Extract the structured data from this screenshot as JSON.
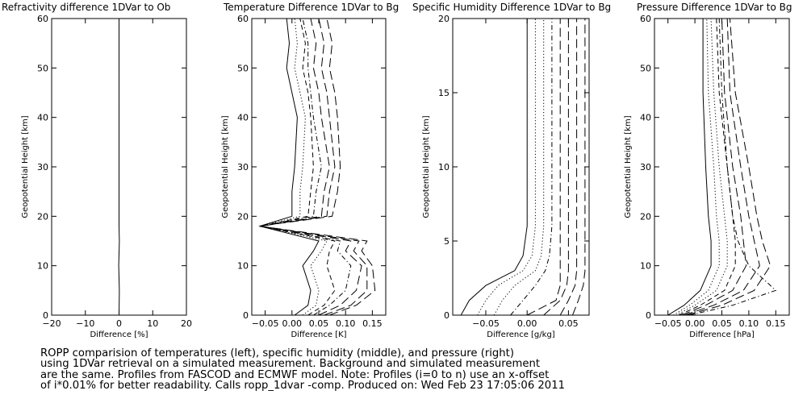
{
  "caption": {
    "lines": [
      "ROPP comparision of temperatures (left), specific humidity (middle), and pressure (right)",
      "using 1DVar retrieval on a simulated measurement. Background and simulated measurement",
      "are the same. Profiles from FASCOD and ECMWF model. Note: Profiles (i=0 to n) use an x-offset",
      "of i*0.01% for better readability. Calls ropp_1dvar -comp. Produced on: Wed Feb 23 17:05:06 2011"
    ]
  },
  "chart_data": [
    {
      "type": "line",
      "title": "Refractivity difference 1DVar to Ob",
      "xlabel": "Difference [%]",
      "ylabel": "Geopotential Height [km]",
      "xlim": [
        -20,
        20
      ],
      "ylim": [
        0,
        60
      ],
      "xticks": [
        -20,
        -10,
        0,
        10,
        20
      ],
      "xtick_labels": [
        "−20",
        "−10",
        "0",
        "10",
        "20"
      ],
      "yticks": [
        0,
        10,
        20,
        30,
        40,
        50,
        60
      ],
      "ytick_labels": [
        "0",
        "10",
        "20",
        "30",
        "40",
        "50",
        "60"
      ],
      "grid": false,
      "series": [
        {
          "dash": "solid",
          "x": [
            0,
            0.1,
            -0.1,
            0.1,
            0,
            0
          ],
          "y": [
            0,
            5,
            10,
            15,
            18,
            60
          ]
        }
      ]
    },
    {
      "type": "line",
      "title": "Temperature Difference 1DVar to Bg",
      "xlabel": "Difference [K]",
      "ylabel": "Geopotential Height [km]",
      "xlim": [
        -0.075,
        0.175
      ],
      "ylim": [
        0,
        60
      ],
      "xticks": [
        -0.05,
        0,
        0.05,
        0.1,
        0.15
      ],
      "xtick_labels": [
        "−0.05",
        "0.00",
        "0.05",
        "0.10",
        "0.15"
      ],
      "yticks": [
        0,
        10,
        20,
        30,
        40,
        50,
        60
      ],
      "ytick_labels": [
        "0",
        "10",
        "20",
        "30",
        "40",
        "50",
        "60"
      ],
      "grid": false,
      "series": [
        {
          "dash": "solid",
          "x": [
            0.005,
            0.03,
            0.035,
            0.02,
            0.04,
            0.05,
            -0.06,
            0.0,
            0.0,
            0.005,
            0.01,
            0.0,
            -0.01,
            -0.005,
            -0.01
          ],
          "y": [
            0,
            2,
            5,
            10,
            13,
            15,
            18,
            20,
            25,
            30,
            40,
            45,
            50,
            55,
            60
          ]
        },
        {
          "dash": "dot",
          "x": [
            0.02,
            0.045,
            0.05,
            0.035,
            0.055,
            0.065,
            -0.06,
            0.015,
            0.015,
            0.02,
            0.025,
            0.015,
            0.005,
            0.01,
            0.005
          ],
          "y": [
            0,
            2,
            5,
            10,
            13,
            15,
            18,
            20,
            25,
            30,
            40,
            45,
            50,
            55,
            60
          ]
        },
        {
          "dash": "dash",
          "x": [
            0.03,
            0.06,
            0.08,
            0.065,
            0.07,
            0.08,
            -0.06,
            0.03,
            0.035,
            0.04,
            0.035,
            0.03,
            0.02,
            0.025,
            0.015
          ],
          "y": [
            0,
            2,
            5,
            10,
            13,
            15,
            18,
            20,
            25,
            30,
            40,
            45,
            50,
            55,
            60
          ]
        },
        {
          "dash": "dashdot",
          "x": [
            0.04,
            0.07,
            0.1,
            0.11,
            0.085,
            0.09,
            -0.06,
            0.04,
            0.045,
            0.055,
            0.04,
            0.035,
            0.03,
            0.03,
            0.02
          ],
          "y": [
            0,
            2,
            5,
            10,
            13,
            15,
            18,
            20,
            25,
            30,
            40,
            45,
            50,
            55,
            60
          ]
        },
        {
          "dash": "longdash",
          "x": [
            0.05,
            0.09,
            0.12,
            0.13,
            0.1,
            0.11,
            -0.06,
            0.055,
            0.06,
            0.07,
            0.055,
            0.05,
            0.04,
            0.045,
            0.035
          ],
          "y": [
            0,
            2,
            5,
            10,
            13,
            15,
            18,
            20,
            25,
            30,
            40,
            45,
            50,
            55,
            60
          ]
        },
        {
          "dash": "longdash",
          "x": [
            0.06,
            0.11,
            0.14,
            0.14,
            0.115,
            0.125,
            -0.06,
            0.065,
            0.07,
            0.08,
            0.07,
            0.065,
            0.055,
            0.06,
            0.05
          ],
          "y": [
            0,
            2,
            5,
            10,
            13,
            15,
            18,
            20,
            25,
            30,
            40,
            45,
            50,
            55,
            60
          ]
        },
        {
          "dash": "longdash",
          "x": [
            0.07,
            0.12,
            0.155,
            0.15,
            0.13,
            0.14,
            -0.06,
            0.075,
            0.085,
            0.09,
            0.085,
            0.08,
            0.07,
            0.075,
            0.065
          ],
          "y": [
            0,
            2,
            5,
            10,
            13,
            15,
            18,
            20,
            25,
            30,
            40,
            45,
            50,
            55,
            60
          ]
        }
      ]
    },
    {
      "type": "line",
      "title": "Specific Humidity Difference 1DVar to Bg",
      "xlabel": "Difference [g/kg]",
      "ylabel": "Geopotential Height [km]",
      "xlim": [
        -0.09,
        0.075
      ],
      "ylim": [
        0,
        20
      ],
      "xticks": [
        -0.05,
        0,
        0.05
      ],
      "xtick_labels": [
        "−0.05",
        "0.00",
        "0.05"
      ],
      "yticks": [
        0,
        5,
        10,
        15,
        20
      ],
      "ytick_labels": [
        "0",
        "5",
        "10",
        "15",
        "20"
      ],
      "grid": false,
      "series": [
        {
          "dash": "solid",
          "x": [
            -0.08,
            -0.07,
            -0.05,
            -0.015,
            -0.005,
            0.0,
            0.0
          ],
          "y": [
            0,
            1,
            2,
            3,
            4,
            6,
            20
          ]
        },
        {
          "dash": "dot",
          "x": [
            -0.06,
            -0.05,
            -0.035,
            -0.005,
            0.006,
            0.01,
            0.01
          ],
          "y": [
            0,
            1,
            2,
            3,
            4,
            6,
            20
          ]
        },
        {
          "dash": "dot",
          "x": [
            -0.04,
            -0.03,
            -0.015,
            0.01,
            0.017,
            0.02,
            0.02
          ],
          "y": [
            0,
            1,
            2,
            3,
            4,
            6,
            20
          ]
        },
        {
          "dash": "dashdot",
          "x": [
            -0.02,
            -0.005,
            0.01,
            0.022,
            0.027,
            0.03,
            0.03
          ],
          "y": [
            0,
            1,
            2,
            3,
            4,
            6,
            20
          ]
        },
        {
          "dash": "longdash",
          "x": [
            0.0,
            0.035,
            0.04,
            0.04,
            0.04,
            0.04,
            0.04
          ],
          "y": [
            0,
            1,
            2,
            3,
            4,
            6,
            20
          ]
        },
        {
          "dash": "longdash",
          "x": [
            0.02,
            0.04,
            0.048,
            0.05,
            0.05,
            0.05,
            0.05
          ],
          "y": [
            0,
            1,
            2,
            3,
            4,
            6,
            20
          ]
        },
        {
          "dash": "longdash",
          "x": [
            0.04,
            0.05,
            0.058,
            0.06,
            0.06,
            0.06,
            0.06
          ],
          "y": [
            0,
            1,
            2,
            3,
            4,
            6,
            20
          ]
        },
        {
          "dash": "longdash",
          "x": [
            0.055,
            0.062,
            0.068,
            0.07,
            0.07,
            0.07,
            0.07
          ],
          "y": [
            0,
            1,
            2,
            3,
            4,
            6,
            20
          ]
        }
      ]
    },
    {
      "type": "line",
      "title": "Pressure Difference 1DVar to Bg",
      "xlabel": "Difference [hPa]",
      "ylabel": "Geopotential Height [km]",
      "xlim": [
        -0.075,
        0.175
      ],
      "ylim": [
        0,
        60
      ],
      "xticks": [
        -0.05,
        0,
        0.05,
        0.1,
        0.15
      ],
      "xtick_labels": [
        "−0.05",
        "0.00",
        "0.05",
        "0.10",
        "0.15"
      ],
      "yticks": [
        0,
        10,
        20,
        30,
        40,
        50,
        60
      ],
      "ytick_labels": [
        "0",
        "10",
        "20",
        "30",
        "40",
        "50",
        "60"
      ],
      "grid": false,
      "series": [
        {
          "dash": "solid",
          "x": [
            -0.05,
            -0.02,
            0.01,
            0.03,
            0.03,
            0.025,
            0.02,
            0.015,
            0.015
          ],
          "y": [
            0,
            2,
            5,
            10,
            15,
            20,
            30,
            45,
            60
          ]
        },
        {
          "dash": "dot",
          "x": [
            -0.04,
            -0.01,
            0.025,
            0.045,
            0.045,
            0.04,
            0.035,
            0.025,
            0.022
          ],
          "y": [
            0,
            2,
            5,
            10,
            15,
            20,
            30,
            45,
            60
          ]
        },
        {
          "dash": "dot",
          "x": [
            -0.035,
            0.0,
            0.04,
            0.06,
            0.06,
            0.055,
            0.045,
            0.035,
            0.03
          ],
          "y": [
            0,
            2,
            5,
            10,
            15,
            20,
            30,
            45,
            60
          ]
        },
        {
          "dash": "dash",
          "x": [
            -0.03,
            0.01,
            0.055,
            0.075,
            0.075,
            0.07,
            0.06,
            0.045,
            0.04
          ],
          "y": [
            0,
            2,
            5,
            10,
            15,
            20,
            30,
            45,
            60
          ]
        },
        {
          "dash": "longdash",
          "x": [
            -0.025,
            0.02,
            0.07,
            0.095,
            0.09,
            0.085,
            0.07,
            0.055,
            0.05
          ],
          "y": [
            0,
            2,
            5,
            10,
            15,
            20,
            30,
            45,
            60
          ]
        },
        {
          "dash": "longdash",
          "x": [
            -0.02,
            0.035,
            0.09,
            0.12,
            0.11,
            0.1,
            0.085,
            0.065,
            0.06
          ],
          "y": [
            0,
            2,
            5,
            10,
            15,
            20,
            30,
            45,
            60
          ]
        },
        {
          "dash": "longdash",
          "x": [
            -0.015,
            0.05,
            0.11,
            0.14,
            0.125,
            0.115,
            0.1,
            0.075,
            0.065
          ],
          "y": [
            0,
            2,
            5,
            10,
            15,
            20,
            30,
            45,
            60
          ]
        },
        {
          "dash": "dashdot",
          "x": [
            -0.01,
            0.07,
            0.15,
            0.1,
            0.08,
            0.07,
            0.06,
            0.05,
            0.045
          ],
          "y": [
            0,
            2,
            5,
            10,
            15,
            20,
            30,
            45,
            60
          ]
        }
      ]
    }
  ]
}
